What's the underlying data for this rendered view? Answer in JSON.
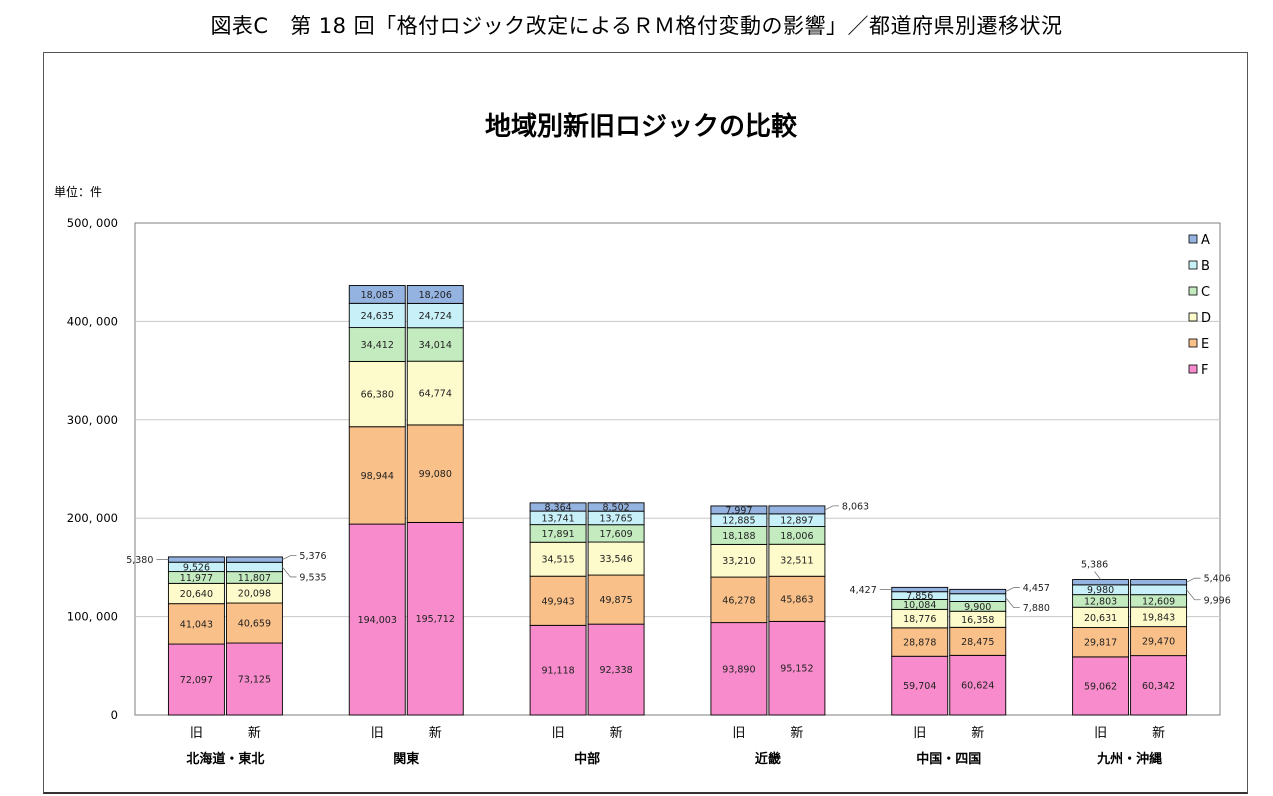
{
  "figure_caption": "図表C　第 18 回「格付ロジック改定によるＲＭ格付変動の影響」／都道府県別遷移状況",
  "chart_data": {
    "type": "bar",
    "stacked": true,
    "title": "地域別新旧ロジックの比較",
    "unit_label": "単位：件",
    "ylim": [
      0,
      500000
    ],
    "y_ticks": [
      "0",
      "100, 000",
      "200, 000",
      "300, 000",
      "400, 000",
      "500, 000"
    ],
    "y_tick_values": [
      0,
      100000,
      200000,
      300000,
      400000,
      500000
    ],
    "grid": true,
    "legend_position": "top-right",
    "series_names": [
      "A",
      "B",
      "C",
      "D",
      "E",
      "F"
    ],
    "colors": {
      "A": "#95B3E0",
      "B": "#C7F0F8",
      "C": "#C4EBC0",
      "D": "#FDFACB",
      "E": "#FAC089",
      "F": "#F78BCB"
    },
    "groups": [
      {
        "name": "北海道・東北",
        "bars": [
          {
            "label": "旧",
            "values": {
              "F": 72097,
              "E": 41043,
              "D": 20640,
              "C": 11977,
              "B": 9526,
              "A": 5380
            },
            "labels": {
              "F": "72,097",
              "E": "41,043",
              "D": "20,640",
              "C": "11,977",
              "B": "9,526"
            },
            "callouts": [
              {
                "series": "A",
                "text": "5,380",
                "side": "left"
              }
            ]
          },
          {
            "label": "新",
            "values": {
              "F": 73125,
              "E": 40659,
              "D": 20098,
              "C": 11807,
              "B": 9535,
              "A": 5376
            },
            "labels": {
              "F": "73,125",
              "E": "40,659",
              "D": "20,098",
              "C": "11,807"
            },
            "callouts": [
              {
                "series": "A",
                "text": "5,376",
                "side": "right"
              },
              {
                "series": "B",
                "text": "9,535",
                "side": "right"
              }
            ]
          }
        ]
      },
      {
        "name": "関東",
        "bars": [
          {
            "label": "旧",
            "values": {
              "F": 194003,
              "E": 98944,
              "D": 66380,
              "C": 34412,
              "B": 24635,
              "A": 18085
            },
            "labels": {
              "F": "194,003",
              "E": "98,944",
              "D": "66,380",
              "C": "34,412",
              "B": "24,635",
              "A": "18,085"
            },
            "callouts": []
          },
          {
            "label": "新",
            "values": {
              "F": 195712,
              "E": 99080,
              "D": 64774,
              "C": 34014,
              "B": 24724,
              "A": 18206
            },
            "labels": {
              "F": "195,712",
              "E": "99,080",
              "D": "64,774",
              "C": "34,014",
              "B": "24,724",
              "A": "18,206"
            },
            "callouts": []
          }
        ]
      },
      {
        "name": "中部",
        "bars": [
          {
            "label": "旧",
            "values": {
              "F": 91118,
              "E": 49943,
              "D": 34515,
              "C": 17891,
              "B": 13741,
              "A": 8364
            },
            "labels": {
              "F": "91,118",
              "E": "49,943",
              "D": "34,515",
              "C": "17,891",
              "B": "13,741",
              "A": "8,364"
            },
            "callouts": []
          },
          {
            "label": "新",
            "values": {
              "F": 92338,
              "E": 49875,
              "D": 33546,
              "C": 17609,
              "B": 13765,
              "A": 8502
            },
            "labels": {
              "F": "92,338",
              "E": "49,875",
              "D": "33,546",
              "C": "17,609",
              "B": "13,765",
              "A": "8,502"
            },
            "callouts": []
          }
        ]
      },
      {
        "name": "近畿",
        "bars": [
          {
            "label": "旧",
            "values": {
              "F": 93890,
              "E": 46278,
              "D": 33210,
              "C": 18188,
              "B": 12885,
              "A": 7997
            },
            "labels": {
              "F": "93,890",
              "E": "46,278",
              "D": "33,210",
              "C": "18,188",
              "B": "12,885",
              "A": "7,997"
            },
            "callouts": []
          },
          {
            "label": "新",
            "values": {
              "F": 95152,
              "E": 45863,
              "D": 32511,
              "C": 18006,
              "B": 12897,
              "A": 8063
            },
            "labels": {
              "F": "95,152",
              "E": "45,863",
              "D": "32,511",
              "C": "18,006",
              "B": "12,897"
            },
            "callouts": [
              {
                "series": "A",
                "text": "8,063",
                "side": "right"
              }
            ]
          }
        ]
      },
      {
        "name": "中国・四国",
        "bars": [
          {
            "label": "旧",
            "values": {
              "F": 59704,
              "E": 28878,
              "D": 18776,
              "C": 10084,
              "B": 7856,
              "A": 4427
            },
            "labels": {
              "F": "59,704",
              "E": "28,878",
              "D": "18,776",
              "C": "10,084",
              "B": "7,856"
            },
            "callouts": [
              {
                "series": "A",
                "text": "4,427",
                "side": "left"
              }
            ]
          },
          {
            "label": "新",
            "values": {
              "F": 60624,
              "E": 28475,
              "D": 16358,
              "C": 9900,
              "B": 7880,
              "A": 4457
            },
            "labels": {
              "F": "60,624",
              "E": "28,475",
              "D": "16,358",
              "C": "9,900"
            },
            "callouts": [
              {
                "series": "A",
                "text": "4,457",
                "side": "right"
              },
              {
                "series": "B",
                "text": "7,880",
                "side": "right"
              }
            ]
          }
        ]
      },
      {
        "name": "九州・沖縄",
        "bars": [
          {
            "label": "旧",
            "values": {
              "F": 59062,
              "E": 29817,
              "D": 20631,
              "C": 12803,
              "B": 9980,
              "A": 5386
            },
            "labels": {
              "F": "59,062",
              "E": "29,817",
              "D": "20,631",
              "C": "12,803",
              "B": "9,980"
            },
            "callouts": [
              {
                "series": "A",
                "text": "5,386",
                "side": "top"
              }
            ]
          },
          {
            "label": "新",
            "values": {
              "F": 60342,
              "E": 29470,
              "D": 19843,
              "C": 12609,
              "B": 9996,
              "A": 5406
            },
            "labels": {
              "F": "60,342",
              "E": "29,470",
              "D": "19,843",
              "C": "12,609"
            },
            "callouts": [
              {
                "series": "A",
                "text": "5,406",
                "side": "right"
              },
              {
                "series": "B",
                "text": "9,996",
                "side": "right"
              }
            ]
          }
        ]
      }
    ]
  }
}
